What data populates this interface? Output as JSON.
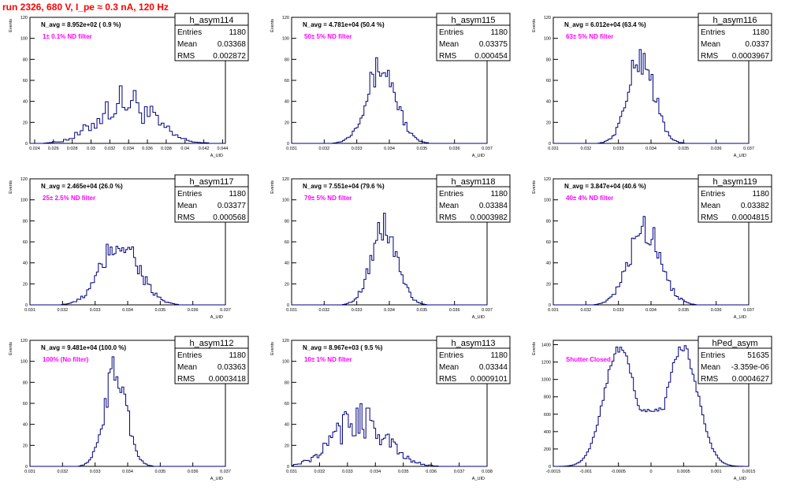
{
  "page": {
    "run_title": "run 2326,   680 V, I_pe ≈ 0.3 nA, 120 Hz"
  },
  "colors": {
    "histogram": "#000080",
    "annotation": "#ff00ff",
    "title": "#ff0000",
    "axis": "#000000"
  },
  "chart_data": [
    {
      "type": "bar",
      "name": "h_asym114",
      "ylabel": "Events",
      "xlabel": "A_UID",
      "xlim": [
        0.0235,
        0.0443
      ],
      "ylim": [
        0,
        120
      ],
      "xticks": [
        0.024,
        0.026,
        0.028,
        0.03,
        0.032,
        0.034,
        0.036,
        0.038,
        0.04,
        0.042,
        0.044
      ],
      "xticklabels": [
        "0.024",
        "0.026",
        "0.028",
        "0.03",
        "0.032",
        "0.034",
        "0.036",
        "0.038",
        "0.04",
        "0.042",
        "0.044"
      ],
      "yticks": [
        0,
        20,
        40,
        60,
        80,
        100,
        120
      ],
      "navg": "N_avg = 8.952e+02 ( 0.9 %)",
      "filter": "1± 0.1% ND filter",
      "stats": {
        "entries": "1180",
        "mean": "0.03368",
        "rms": "0.002872"
      },
      "mu": 0.03368,
      "sigma": 0.002872,
      "peak": 40,
      "bins": 70,
      "noise": 0.45
    },
    {
      "type": "bar",
      "name": "h_asym115",
      "ylabel": "Events",
      "xlabel": "A_UID",
      "xlim": [
        0.031,
        0.037
      ],
      "ylim": [
        0,
        120
      ],
      "xticks": [
        0.031,
        0.032,
        0.033,
        0.034,
        0.035,
        0.036,
        0.037
      ],
      "xticklabels": [
        "0.031",
        "0.032",
        "0.033",
        "0.034",
        "0.035",
        "0.036",
        "0.037"
      ],
      "yticks": [
        0,
        20,
        40,
        60,
        80,
        100,
        120
      ],
      "navg": "N_avg = 4.781e+04 (50.4 %)",
      "filter": "50± 5% ND filter",
      "stats": {
        "entries": "1180",
        "mean": "0.03375",
        "rms": "0.000454"
      },
      "mu": 0.03375,
      "sigma": 0.000454,
      "peak": 72,
      "bins": 100,
      "noise": 0.22
    },
    {
      "type": "bar",
      "name": "h_asym116",
      "ylabel": "Events",
      "xlabel": "A_UID",
      "xlim": [
        0.031,
        0.037
      ],
      "ylim": [
        0,
        120
      ],
      "xticks": [
        0.031,
        0.032,
        0.033,
        0.034,
        0.035,
        0.036,
        0.037
      ],
      "xticklabels": [
        "0.031",
        "0.032",
        "0.033",
        "0.034",
        "0.035",
        "0.036",
        "0.037"
      ],
      "yticks": [
        0,
        20,
        40,
        60,
        80,
        100,
        120
      ],
      "navg": "N_avg = 6.012e+04 (63.4 %)",
      "filter": "63± 5% ND filter",
      "stats": {
        "entries": "1180",
        "mean": "0.0337",
        "rms": "0.0003967"
      },
      "mu": 0.0337,
      "sigma": 0.0003967,
      "peak": 82,
      "bins": 100,
      "noise": 0.22
    },
    {
      "type": "bar",
      "name": "h_asym117",
      "ylabel": "Events",
      "xlabel": "A_UID",
      "xlim": [
        0.031,
        0.037
      ],
      "ylim": [
        0,
        120
      ],
      "xticks": [
        0.031,
        0.032,
        0.033,
        0.034,
        0.035,
        0.036,
        0.037
      ],
      "xticklabels": [
        "0.031",
        "0.032",
        "0.033",
        "0.034",
        "0.035",
        "0.036",
        "0.037"
      ],
      "yticks": [
        0,
        20,
        40,
        60,
        80,
        100,
        120
      ],
      "navg": "N_avg = 2.465e+04 (26.0 %)",
      "filter": "25± 2.5% ND filter",
      "stats": {
        "entries": "1180",
        "mean": "0.03377",
        "rms": "0.000568"
      },
      "mu": 0.03377,
      "sigma": 0.000568,
      "peak": 60,
      "bins": 100,
      "noise": 0.28
    },
    {
      "type": "bar",
      "name": "h_asym118",
      "ylabel": "Events",
      "xlabel": "A_UID",
      "xlim": [
        0.031,
        0.037
      ],
      "ylim": [
        0,
        120
      ],
      "xticks": [
        0.031,
        0.032,
        0.033,
        0.034,
        0.035,
        0.036,
        0.037
      ],
      "xticklabels": [
        "0.031",
        "0.032",
        "0.033",
        "0.034",
        "0.035",
        "0.036",
        "0.037"
      ],
      "yticks": [
        0,
        20,
        40,
        60,
        80,
        100,
        120
      ],
      "navg": "N_avg = 7.551e+04 (79.6 %)",
      "filter": "79± 5% ND filter",
      "stats": {
        "entries": "1180",
        "mean": "0.03384",
        "rms": "0.0003982"
      },
      "mu": 0.03384,
      "sigma": 0.0003982,
      "peak": 73,
      "bins": 100,
      "noise": 0.22
    },
    {
      "type": "bar",
      "name": "h_asym119",
      "ylabel": "Events",
      "xlabel": "A_UID",
      "xlim": [
        0.031,
        0.037
      ],
      "ylim": [
        0,
        120
      ],
      "xticks": [
        0.031,
        0.032,
        0.033,
        0.034,
        0.035,
        0.036,
        0.037
      ],
      "xticklabels": [
        "0.031",
        "0.032",
        "0.033",
        "0.034",
        "0.035",
        "0.036",
        "0.037"
      ],
      "yticks": [
        0,
        20,
        40,
        60,
        80,
        100,
        120
      ],
      "navg": "N_avg = 3.847e+04 (40.6 %)",
      "filter": "40± 4% ND filter",
      "stats": {
        "entries": "1180",
        "mean": "0.03382",
        "rms": "0.0004815"
      },
      "mu": 0.03382,
      "sigma": 0.0004815,
      "peak": 74,
      "bins": 100,
      "noise": 0.24
    },
    {
      "type": "bar",
      "name": "h_asym112",
      "ylabel": "Events",
      "xlabel": "A_UID",
      "xlim": [
        0.031,
        0.037
      ],
      "ylim": [
        0,
        120
      ],
      "xticks": [
        0.031,
        0.032,
        0.033,
        0.034,
        0.035,
        0.036,
        0.037
      ],
      "xticklabels": [
        "0.031",
        "0.032",
        "0.033",
        "0.034",
        "0.035",
        "0.036",
        "0.037"
      ],
      "yticks": [
        0,
        20,
        40,
        60,
        80,
        100,
        120
      ],
      "navg": "N_avg = 9.481e+04 (100.0 %)",
      "filter": "100% (No filter)",
      "stats": {
        "entries": "1180",
        "mean": "0.03363",
        "rms": "0.0003418"
      },
      "mu": 0.03363,
      "sigma": 0.0003418,
      "peak": 90,
      "bins": 100,
      "noise": 0.2
    },
    {
      "type": "bar",
      "name": "h_asym113",
      "ylabel": "Events",
      "xlabel": "A_UID",
      "xlim": [
        0.031,
        0.038
      ],
      "ylim": [
        0,
        120
      ],
      "xticks": [
        0.031,
        0.032,
        0.033,
        0.034,
        0.035,
        0.036,
        0.037,
        0.038
      ],
      "xticklabels": [
        "0.031",
        "0.032",
        "0.033",
        "0.034",
        "0.035",
        "0.036",
        "0.037",
        "0.038"
      ],
      "yticks": [
        0,
        20,
        40,
        60,
        80,
        100,
        120
      ],
      "navg": "N_avg = 8.967e+03 ( 9.5 %)",
      "filter": "10± 1% ND filter",
      "stats": {
        "entries": "1180",
        "mean": "0.03344",
        "rms": "0.0009101"
      },
      "mu": 0.03344,
      "sigma": 0.0009101,
      "peak": 45,
      "bins": 100,
      "noise": 0.4
    },
    {
      "type": "bar",
      "name": "hPed_asym",
      "ylabel": "Events",
      "xlabel": "A_UID",
      "xlim": [
        -0.0015,
        0.0015
      ],
      "ylim": [
        0,
        1450
      ],
      "xticks": [
        -0.0015,
        -0.001,
        -0.0005,
        0,
        0.0005,
        0.001,
        0.0015
      ],
      "xticklabels": [
        "-0.0015",
        "-0.001",
        "-0.0005",
        "0",
        "0.0005",
        "0.001",
        "0.0015"
      ],
      "yticks": [
        0,
        200,
        400,
        600,
        800,
        1000,
        1200,
        1400
      ],
      "navg": "",
      "filter": "Shutter Closed",
      "stats": {
        "entries": "51635",
        "mean": "-3.359e-06",
        "rms": "0.0004627"
      },
      "bimodal": true,
      "peaks": [
        -0.00048,
        0.00048
      ],
      "peak": 1370,
      "sigma": 0.00024,
      "dip": 650,
      "bins": 100,
      "noise": 0.04
    }
  ]
}
